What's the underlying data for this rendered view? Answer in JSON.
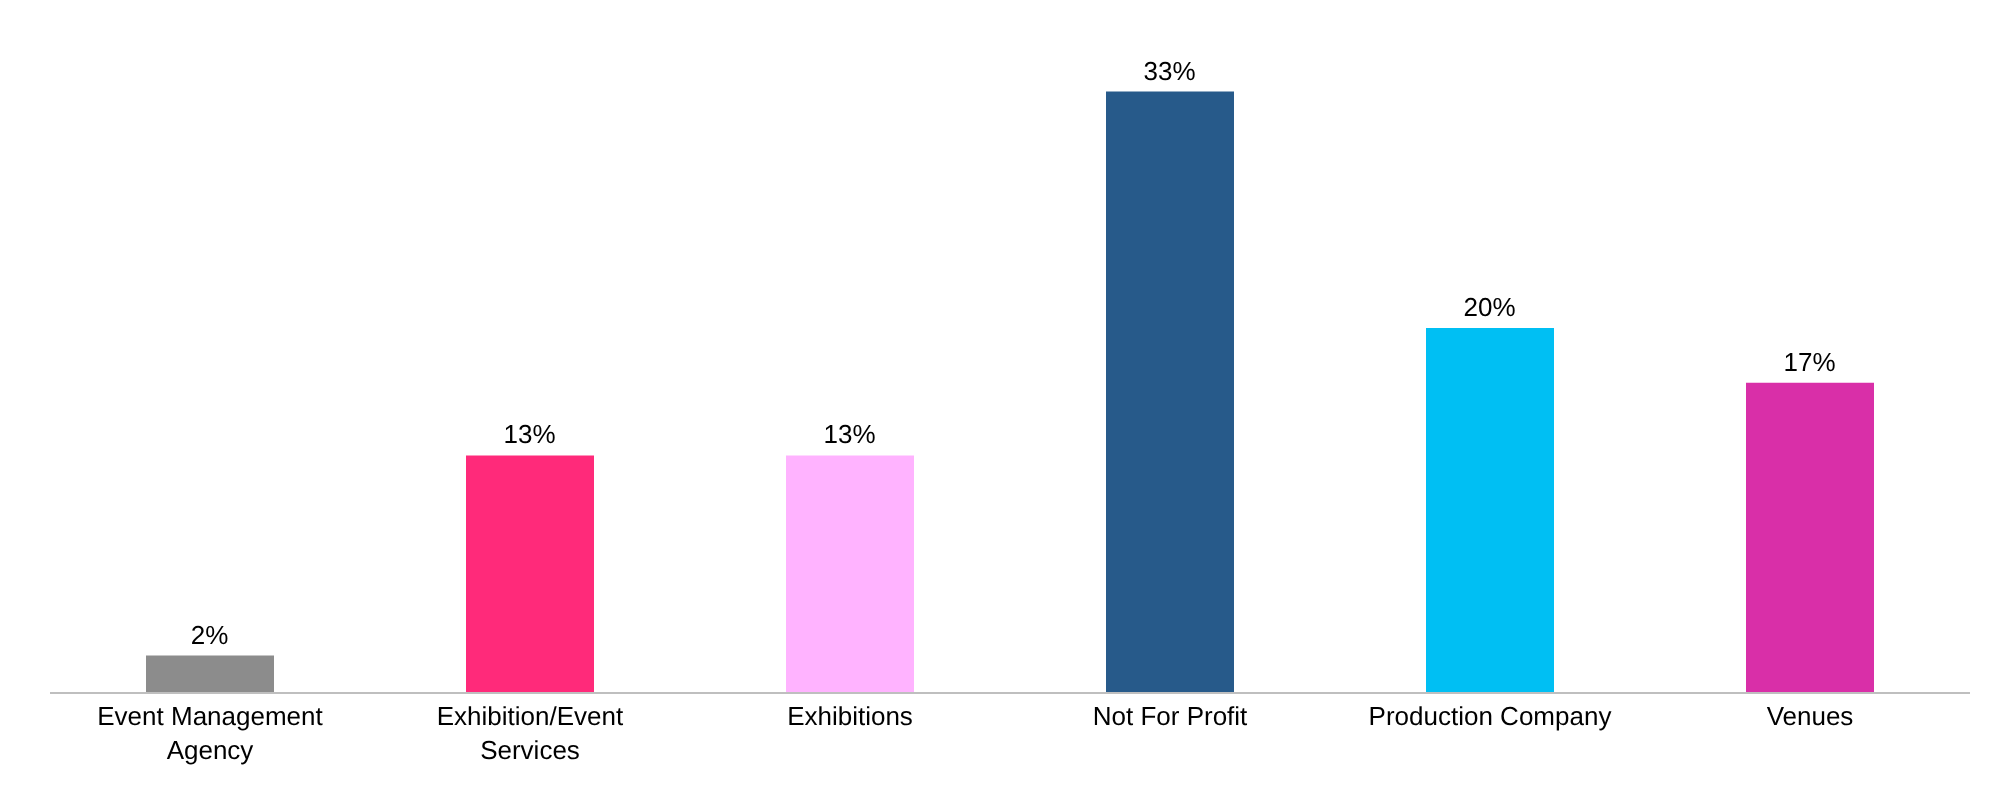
{
  "chart_data": {
    "type": "bar",
    "categories": [
      "Event Management Agency",
      "Exhibition/Event Services",
      "Exhibitions",
      "Not For Profit",
      "Production Company",
      "Venues"
    ],
    "values": [
      2,
      13,
      13,
      33,
      20,
      17
    ],
    "colors": [
      "#8c8c8c",
      "#ff2a7a",
      "#ffb3ff",
      "#275a8a",
      "#00bff3",
      "#d92fa8"
    ],
    "value_labels": [
      "2%",
      "13%",
      "13%",
      "33%",
      "20%",
      "17%"
    ],
    "tick_labels": "x"
  }
}
